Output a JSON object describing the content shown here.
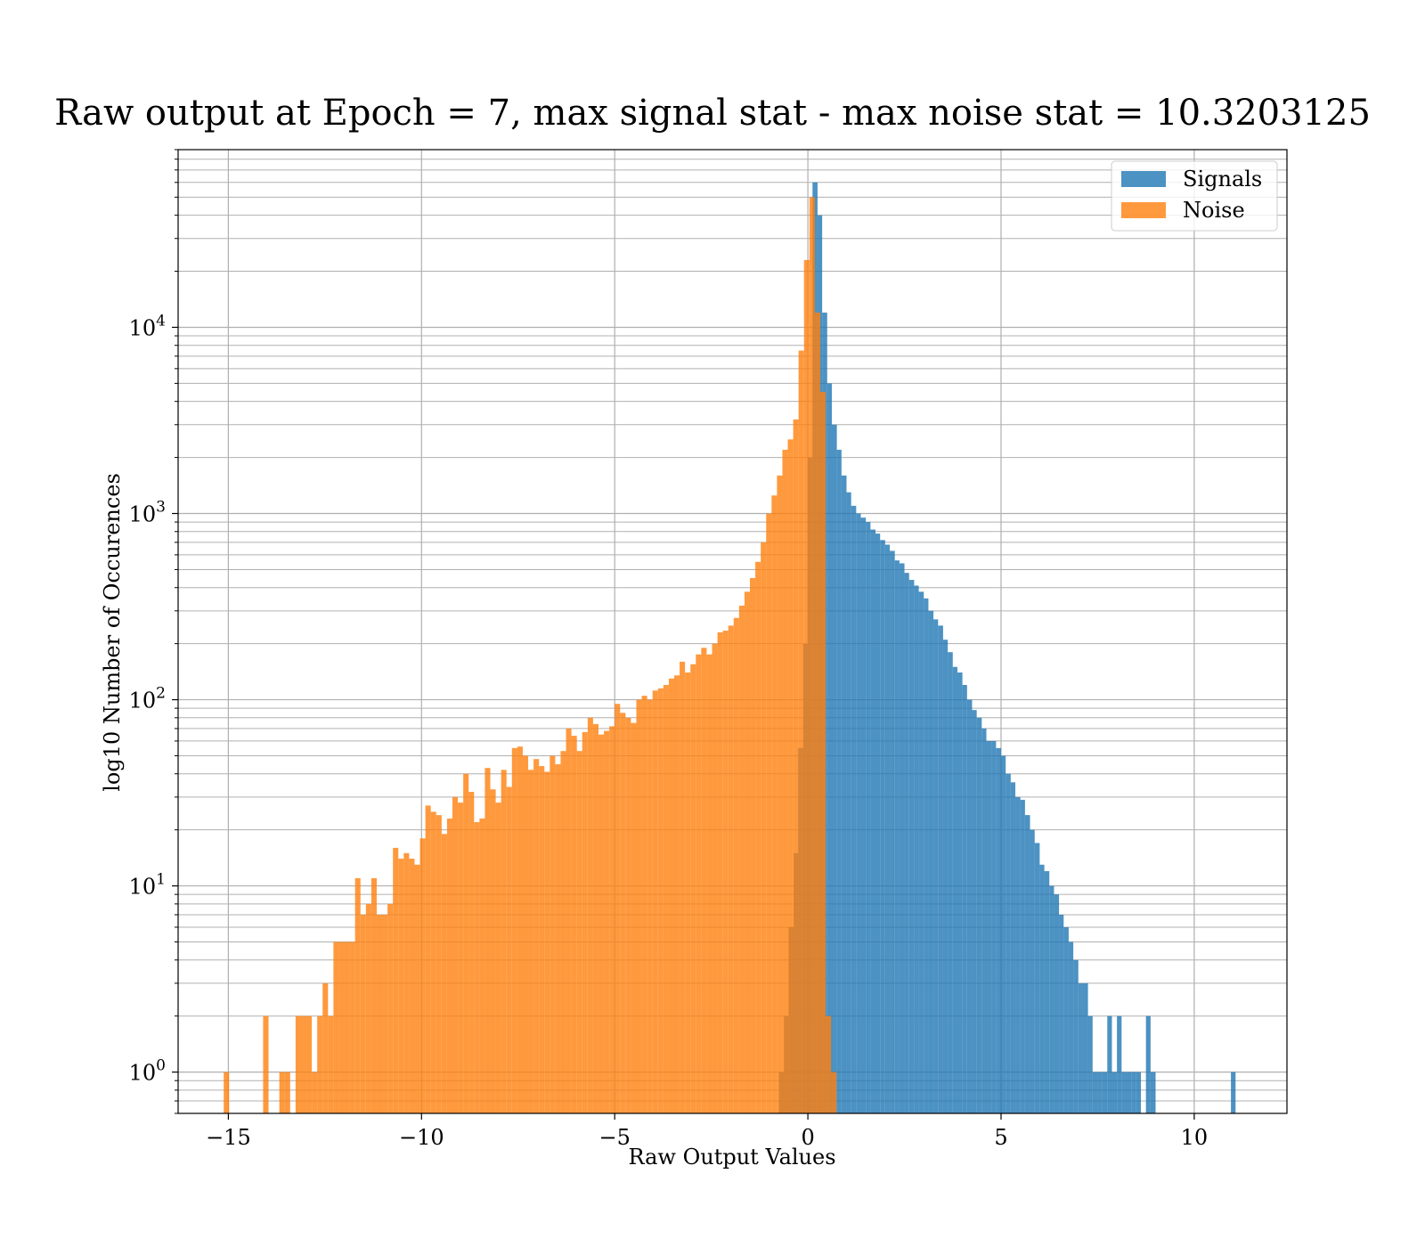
{
  "chart_data": {
    "type": "bar",
    "subtype": "overlaid-histogram",
    "title": "Raw output at Epoch = 7, max signal stat - max noise stat = 10.3203125",
    "xlabel": "Raw Output Values",
    "ylabel": "log10 Number of Occurences",
    "xlim": [
      -16.3,
      12.4
    ],
    "ylim": [
      0.6,
      90000
    ],
    "y_scale": "log",
    "grid": true,
    "grid_minor_y": true,
    "legend_position": "upper-right",
    "x_ticks": [
      {
        "value": -15,
        "label": "−15"
      },
      {
        "value": -10,
        "label": "−10"
      },
      {
        "value": -5,
        "label": "−5"
      },
      {
        "value": 0,
        "label": "0"
      },
      {
        "value": 5,
        "label": "5"
      },
      {
        "value": 10,
        "label": "10"
      }
    ],
    "y_ticks": [
      {
        "value": 1,
        "base": "10",
        "exp": "0"
      },
      {
        "value": 10,
        "base": "10",
        "exp": "1"
      },
      {
        "value": 100,
        "base": "10",
        "exp": "2"
      },
      {
        "value": 1000,
        "base": "10",
        "exp": "3"
      },
      {
        "value": 10000,
        "base": "10",
        "exp": "4"
      }
    ],
    "bar_opacity": 0.8,
    "series": [
      {
        "name": "Signals",
        "color": "#1f77b4",
        "bins": [
          [
            -0.75,
            -0.62,
            1
          ],
          [
            -0.62,
            -0.5,
            2
          ],
          [
            -0.5,
            -0.37,
            6
          ],
          [
            -0.37,
            -0.25,
            15
          ],
          [
            -0.25,
            -0.12,
            55
          ],
          [
            -0.12,
            0.0,
            200
          ],
          [
            0.0,
            0.12,
            2000
          ],
          [
            0.12,
            0.25,
            60000
          ],
          [
            0.25,
            0.37,
            40000
          ],
          [
            0.37,
            0.5,
            12000
          ],
          [
            0.5,
            0.62,
            5000
          ],
          [
            0.62,
            0.75,
            3000
          ],
          [
            0.75,
            0.87,
            2200
          ],
          [
            0.87,
            1.0,
            1600
          ],
          [
            1.0,
            1.12,
            1300
          ],
          [
            1.12,
            1.25,
            1100
          ],
          [
            1.25,
            1.37,
            1000
          ],
          [
            1.37,
            1.5,
            950
          ],
          [
            1.5,
            1.62,
            900
          ],
          [
            1.62,
            1.75,
            820
          ],
          [
            1.75,
            1.87,
            780
          ],
          [
            1.87,
            2.0,
            720
          ],
          [
            2.0,
            2.12,
            680
          ],
          [
            2.12,
            2.25,
            630
          ],
          [
            2.25,
            2.37,
            560
          ],
          [
            2.37,
            2.5,
            540
          ],
          [
            2.5,
            2.62,
            480
          ],
          [
            2.62,
            2.75,
            440
          ],
          [
            2.75,
            2.87,
            410
          ],
          [
            2.87,
            3.0,
            380
          ],
          [
            3.0,
            3.12,
            350
          ],
          [
            3.12,
            3.25,
            300
          ],
          [
            3.25,
            3.37,
            270
          ],
          [
            3.37,
            3.5,
            250
          ],
          [
            3.5,
            3.62,
            210
          ],
          [
            3.62,
            3.75,
            180
          ],
          [
            3.75,
            3.87,
            150
          ],
          [
            3.87,
            4.0,
            140
          ],
          [
            4.0,
            4.12,
            120
          ],
          [
            4.12,
            4.25,
            100
          ],
          [
            4.25,
            4.37,
            88
          ],
          [
            4.37,
            4.5,
            80
          ],
          [
            4.5,
            4.62,
            70
          ],
          [
            4.62,
            4.75,
            60
          ],
          [
            4.75,
            4.87,
            60
          ],
          [
            4.87,
            5.0,
            55
          ],
          [
            5.0,
            5.12,
            50
          ],
          [
            5.12,
            5.25,
            40
          ],
          [
            5.25,
            5.37,
            36
          ],
          [
            5.37,
            5.5,
            30
          ],
          [
            5.5,
            5.62,
            29
          ],
          [
            5.62,
            5.75,
            24
          ],
          [
            5.75,
            5.87,
            20
          ],
          [
            5.87,
            6.0,
            17
          ],
          [
            6.0,
            6.12,
            13
          ],
          [
            6.12,
            6.25,
            12
          ],
          [
            6.25,
            6.37,
            10
          ],
          [
            6.37,
            6.5,
            9
          ],
          [
            6.5,
            6.62,
            7
          ],
          [
            6.62,
            6.75,
            6
          ],
          [
            6.75,
            6.87,
            5
          ],
          [
            6.87,
            7.0,
            4
          ],
          [
            7.0,
            7.12,
            3
          ],
          [
            7.12,
            7.25,
            3
          ],
          [
            7.25,
            7.37,
            2
          ],
          [
            7.37,
            7.5,
            1
          ],
          [
            7.5,
            7.62,
            1
          ],
          [
            7.62,
            7.75,
            1
          ],
          [
            7.75,
            7.87,
            2
          ],
          [
            7.87,
            8.0,
            1
          ],
          [
            8.0,
            8.12,
            2
          ],
          [
            8.12,
            8.25,
            1
          ],
          [
            8.25,
            8.37,
            1
          ],
          [
            8.37,
            8.5,
            1
          ],
          [
            8.5,
            8.62,
            1
          ],
          [
            8.75,
            8.87,
            2
          ],
          [
            8.87,
            9.0,
            1
          ],
          [
            10.95,
            11.07,
            1
          ]
        ]
      },
      {
        "name": "Noise",
        "color": "#ff7f0e",
        "bins": [
          [
            -15.12,
            -14.98,
            1
          ],
          [
            -14.1,
            -13.96,
            2
          ],
          [
            -13.68,
            -13.54,
            1
          ],
          [
            -13.54,
            -13.4,
            1
          ],
          [
            -13.26,
            -13.12,
            2
          ],
          [
            -13.12,
            -12.98,
            2
          ],
          [
            -12.98,
            -12.84,
            2
          ],
          [
            -12.84,
            -12.7,
            1
          ],
          [
            -12.7,
            -12.56,
            2
          ],
          [
            -12.56,
            -12.42,
            3
          ],
          [
            -12.42,
            -12.28,
            2
          ],
          [
            -12.28,
            -12.14,
            5
          ],
          [
            -12.14,
            -12.0,
            5
          ],
          [
            -12.0,
            -11.86,
            5
          ],
          [
            -11.86,
            -11.72,
            5
          ],
          [
            -11.72,
            -11.58,
            11
          ],
          [
            -11.58,
            -11.44,
            7
          ],
          [
            -11.44,
            -11.3,
            8
          ],
          [
            -11.3,
            -11.16,
            11
          ],
          [
            -11.16,
            -11.02,
            7
          ],
          [
            -11.02,
            -10.88,
            7
          ],
          [
            -10.88,
            -10.74,
            8
          ],
          [
            -10.74,
            -10.6,
            16
          ],
          [
            -10.6,
            -10.46,
            14
          ],
          [
            -10.46,
            -10.32,
            15
          ],
          [
            -10.32,
            -10.18,
            14
          ],
          [
            -10.18,
            -10.04,
            13
          ],
          [
            -10.04,
            -9.9,
            18
          ],
          [
            -9.9,
            -9.76,
            27
          ],
          [
            -9.76,
            -9.62,
            25
          ],
          [
            -9.62,
            -9.48,
            24
          ],
          [
            -9.48,
            -9.34,
            19
          ],
          [
            -9.34,
            -9.2,
            23
          ],
          [
            -9.2,
            -9.06,
            30
          ],
          [
            -9.06,
            -8.92,
            28
          ],
          [
            -8.92,
            -8.78,
            40
          ],
          [
            -8.78,
            -8.64,
            32
          ],
          [
            -8.64,
            -8.5,
            22
          ],
          [
            -8.5,
            -8.36,
            23
          ],
          [
            -8.36,
            -8.22,
            43
          ],
          [
            -8.22,
            -8.08,
            33
          ],
          [
            -8.08,
            -7.94,
            28
          ],
          [
            -7.94,
            -7.8,
            42
          ],
          [
            -7.8,
            -7.66,
            34
          ],
          [
            -7.66,
            -7.52,
            55
          ],
          [
            -7.52,
            -7.38,
            56
          ],
          [
            -7.38,
            -7.24,
            50
          ],
          [
            -7.24,
            -7.1,
            42
          ],
          [
            -7.1,
            -6.96,
            48
          ],
          [
            -6.96,
            -6.82,
            44
          ],
          [
            -6.82,
            -6.68,
            41
          ],
          [
            -6.68,
            -6.54,
            50
          ],
          [
            -6.54,
            -6.4,
            45
          ],
          [
            -6.4,
            -6.26,
            53
          ],
          [
            -6.26,
            -6.12,
            70
          ],
          [
            -6.12,
            -5.98,
            64
          ],
          [
            -5.98,
            -5.84,
            53
          ],
          [
            -5.84,
            -5.7,
            67
          ],
          [
            -5.7,
            -5.56,
            80
          ],
          [
            -5.56,
            -5.42,
            74
          ],
          [
            -5.42,
            -5.28,
            65
          ],
          [
            -5.28,
            -5.14,
            68
          ],
          [
            -5.14,
            -5.0,
            72
          ],
          [
            -5.0,
            -4.86,
            95
          ],
          [
            -4.86,
            -4.72,
            85
          ],
          [
            -4.72,
            -4.58,
            80
          ],
          [
            -4.58,
            -4.44,
            75
          ],
          [
            -4.44,
            -4.3,
            100
          ],
          [
            -4.3,
            -4.16,
            105
          ],
          [
            -4.16,
            -4.02,
            100
          ],
          [
            -4.02,
            -3.88,
            112
          ],
          [
            -3.88,
            -3.74,
            115
          ],
          [
            -3.74,
            -3.6,
            120
          ],
          [
            -3.6,
            -3.46,
            130
          ],
          [
            -3.46,
            -3.32,
            135
          ],
          [
            -3.32,
            -3.18,
            160
          ],
          [
            -3.18,
            -3.04,
            140
          ],
          [
            -3.04,
            -2.9,
            155
          ],
          [
            -2.9,
            -2.76,
            175
          ],
          [
            -2.76,
            -2.62,
            190
          ],
          [
            -2.62,
            -2.48,
            175
          ],
          [
            -2.48,
            -2.34,
            200
          ],
          [
            -2.34,
            -2.2,
            230
          ],
          [
            -2.2,
            -2.06,
            235
          ],
          [
            -2.06,
            -1.92,
            250
          ],
          [
            -1.92,
            -1.78,
            275
          ],
          [
            -1.78,
            -1.64,
            320
          ],
          [
            -1.64,
            -1.5,
            380
          ],
          [
            -1.5,
            -1.36,
            450
          ],
          [
            -1.36,
            -1.22,
            550
          ],
          [
            -1.22,
            -1.08,
            700
          ],
          [
            -1.08,
            -0.94,
            1000
          ],
          [
            -0.94,
            -0.8,
            1250
          ],
          [
            -0.8,
            -0.66,
            1600
          ],
          [
            -0.66,
            -0.52,
            2200
          ],
          [
            -0.52,
            -0.38,
            2500
          ],
          [
            -0.38,
            -0.24,
            3200
          ],
          [
            -0.24,
            -0.1,
            7500
          ],
          [
            -0.1,
            0.04,
            23000
          ],
          [
            0.04,
            0.18,
            50000
          ],
          [
            0.18,
            0.32,
            12000
          ],
          [
            0.32,
            0.46,
            4500
          ],
          [
            0.46,
            0.6,
            2
          ],
          [
            0.6,
            0.74,
            1
          ]
        ]
      }
    ]
  }
}
